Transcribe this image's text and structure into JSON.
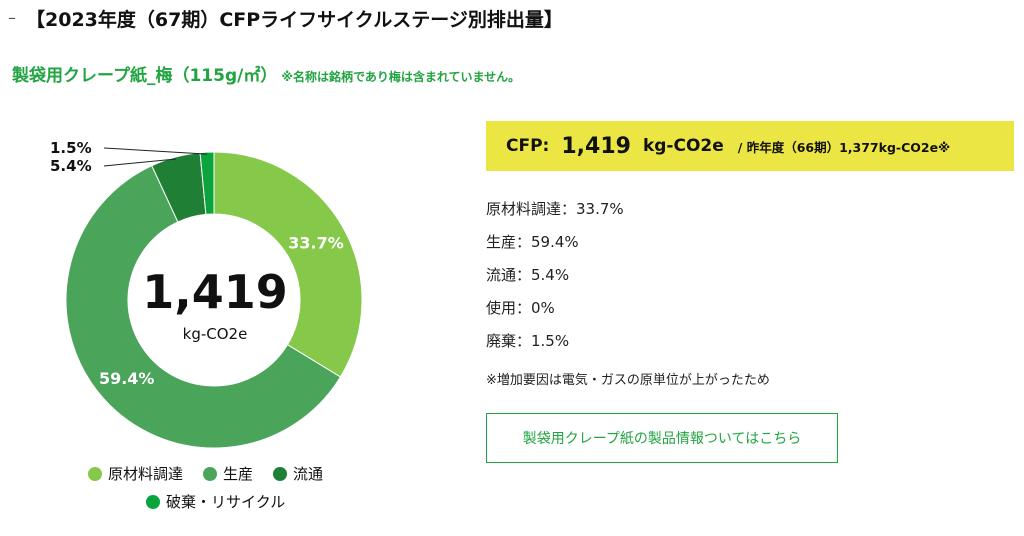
{
  "page": {
    "dash": "–",
    "title": "【2023年度（67期）CFPライフサイクルステージ別排出量】",
    "subtitle": "製袋用クレープ紙_梅（115g/㎡）",
    "subtitle_note": "※名称は銘柄であり梅は含まれていません。"
  },
  "chart_data": {
    "type": "pie",
    "center_value": "1,419",
    "center_unit": "kg-CO2e",
    "slices": [
      {
        "name": "原材料調達",
        "value": 33.7,
        "label": "33.7%",
        "color": "#85c84a"
      },
      {
        "name": "生産",
        "value": 59.4,
        "label": "59.4%",
        "color": "#4aa55a"
      },
      {
        "name": "流通",
        "value": 5.4,
        "label": "5.4%",
        "color": "#1e7f35"
      },
      {
        "name": "破棄・リサイクル",
        "value": 1.5,
        "label": "1.5%",
        "color": "#0aa43c"
      }
    ],
    "legend": [
      "原材料調達",
      "生産",
      "流通",
      "破棄・リサイクル"
    ]
  },
  "cfp": {
    "label": "CFP:",
    "value": "1,419",
    "unit": "kg-CO2e",
    "previous": "/ 昨年度（66期）1,377kg-CO2e※"
  },
  "breakdown": [
    "原材料調達：33.7%",
    "生産：59.4%",
    "流通：5.4%",
    "使用：0%",
    "廃棄：1.5%"
  ],
  "reason_note": "※増加要因は電気・ガスの原単位が上がったため",
  "link_button": "製袋用クレープ紙の製品情報ついてはこちら"
}
